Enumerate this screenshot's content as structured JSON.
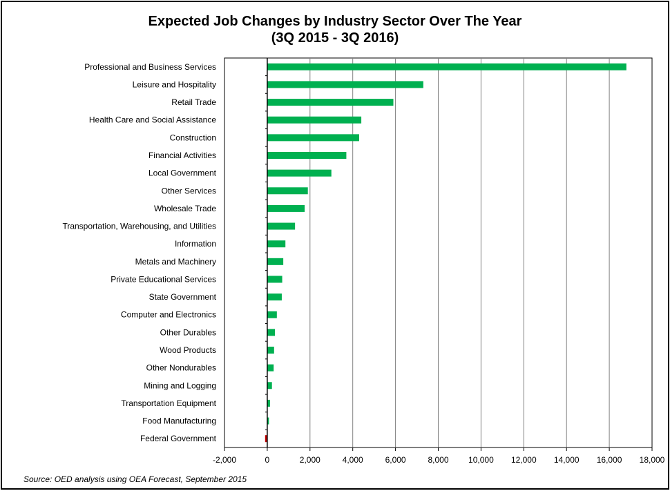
{
  "chart_data": {
    "type": "bar",
    "orientation": "horizontal",
    "title": "Expected Job Changes by Industry Sector Over The Year",
    "subtitle": "(3Q 2015 - 3Q 2016)",
    "xlabel": "",
    "ylabel": "",
    "xlim": [
      -2000,
      18000
    ],
    "x_ticks": [
      -2000,
      0,
      2000,
      4000,
      6000,
      8000,
      10000,
      12000,
      14000,
      16000,
      18000
    ],
    "x_tick_labels": [
      "-2,000",
      "0",
      "2,000",
      "4,000",
      "6,000",
      "8,000",
      "10,000",
      "12,000",
      "14,000",
      "16,000",
      "18,000"
    ],
    "grid": "vertical",
    "legend": "none",
    "categories": [
      "Professional and Business Services",
      "Leisure and Hospitality",
      "Retail Trade",
      "Health Care and Social Assistance",
      "Construction",
      "Financial Activities",
      "Local Government",
      "Other Services",
      "Wholesale Trade",
      "Transportation, Warehousing, and Utilities",
      "Information",
      "Metals and Machinery",
      "Private Educational Services",
      "State Government",
      "Computer and Electronics",
      "Other Durables",
      "Wood Products",
      "Other Nondurables",
      "Mining and Logging",
      "Transportation Equipment",
      "Food Manufacturing",
      "Federal Government"
    ],
    "values": [
      16800,
      7300,
      5900,
      4400,
      4300,
      3700,
      3000,
      1900,
      1750,
      1300,
      850,
      750,
      700,
      680,
      450,
      360,
      320,
      300,
      220,
      130,
      80,
      -100
    ],
    "colors": {
      "positive": "#00b050",
      "negative": "#c00000",
      "grid": "#808080",
      "axis": "#000000"
    }
  },
  "source": "Source: OED analysis using OEA Forecast, September 2015"
}
